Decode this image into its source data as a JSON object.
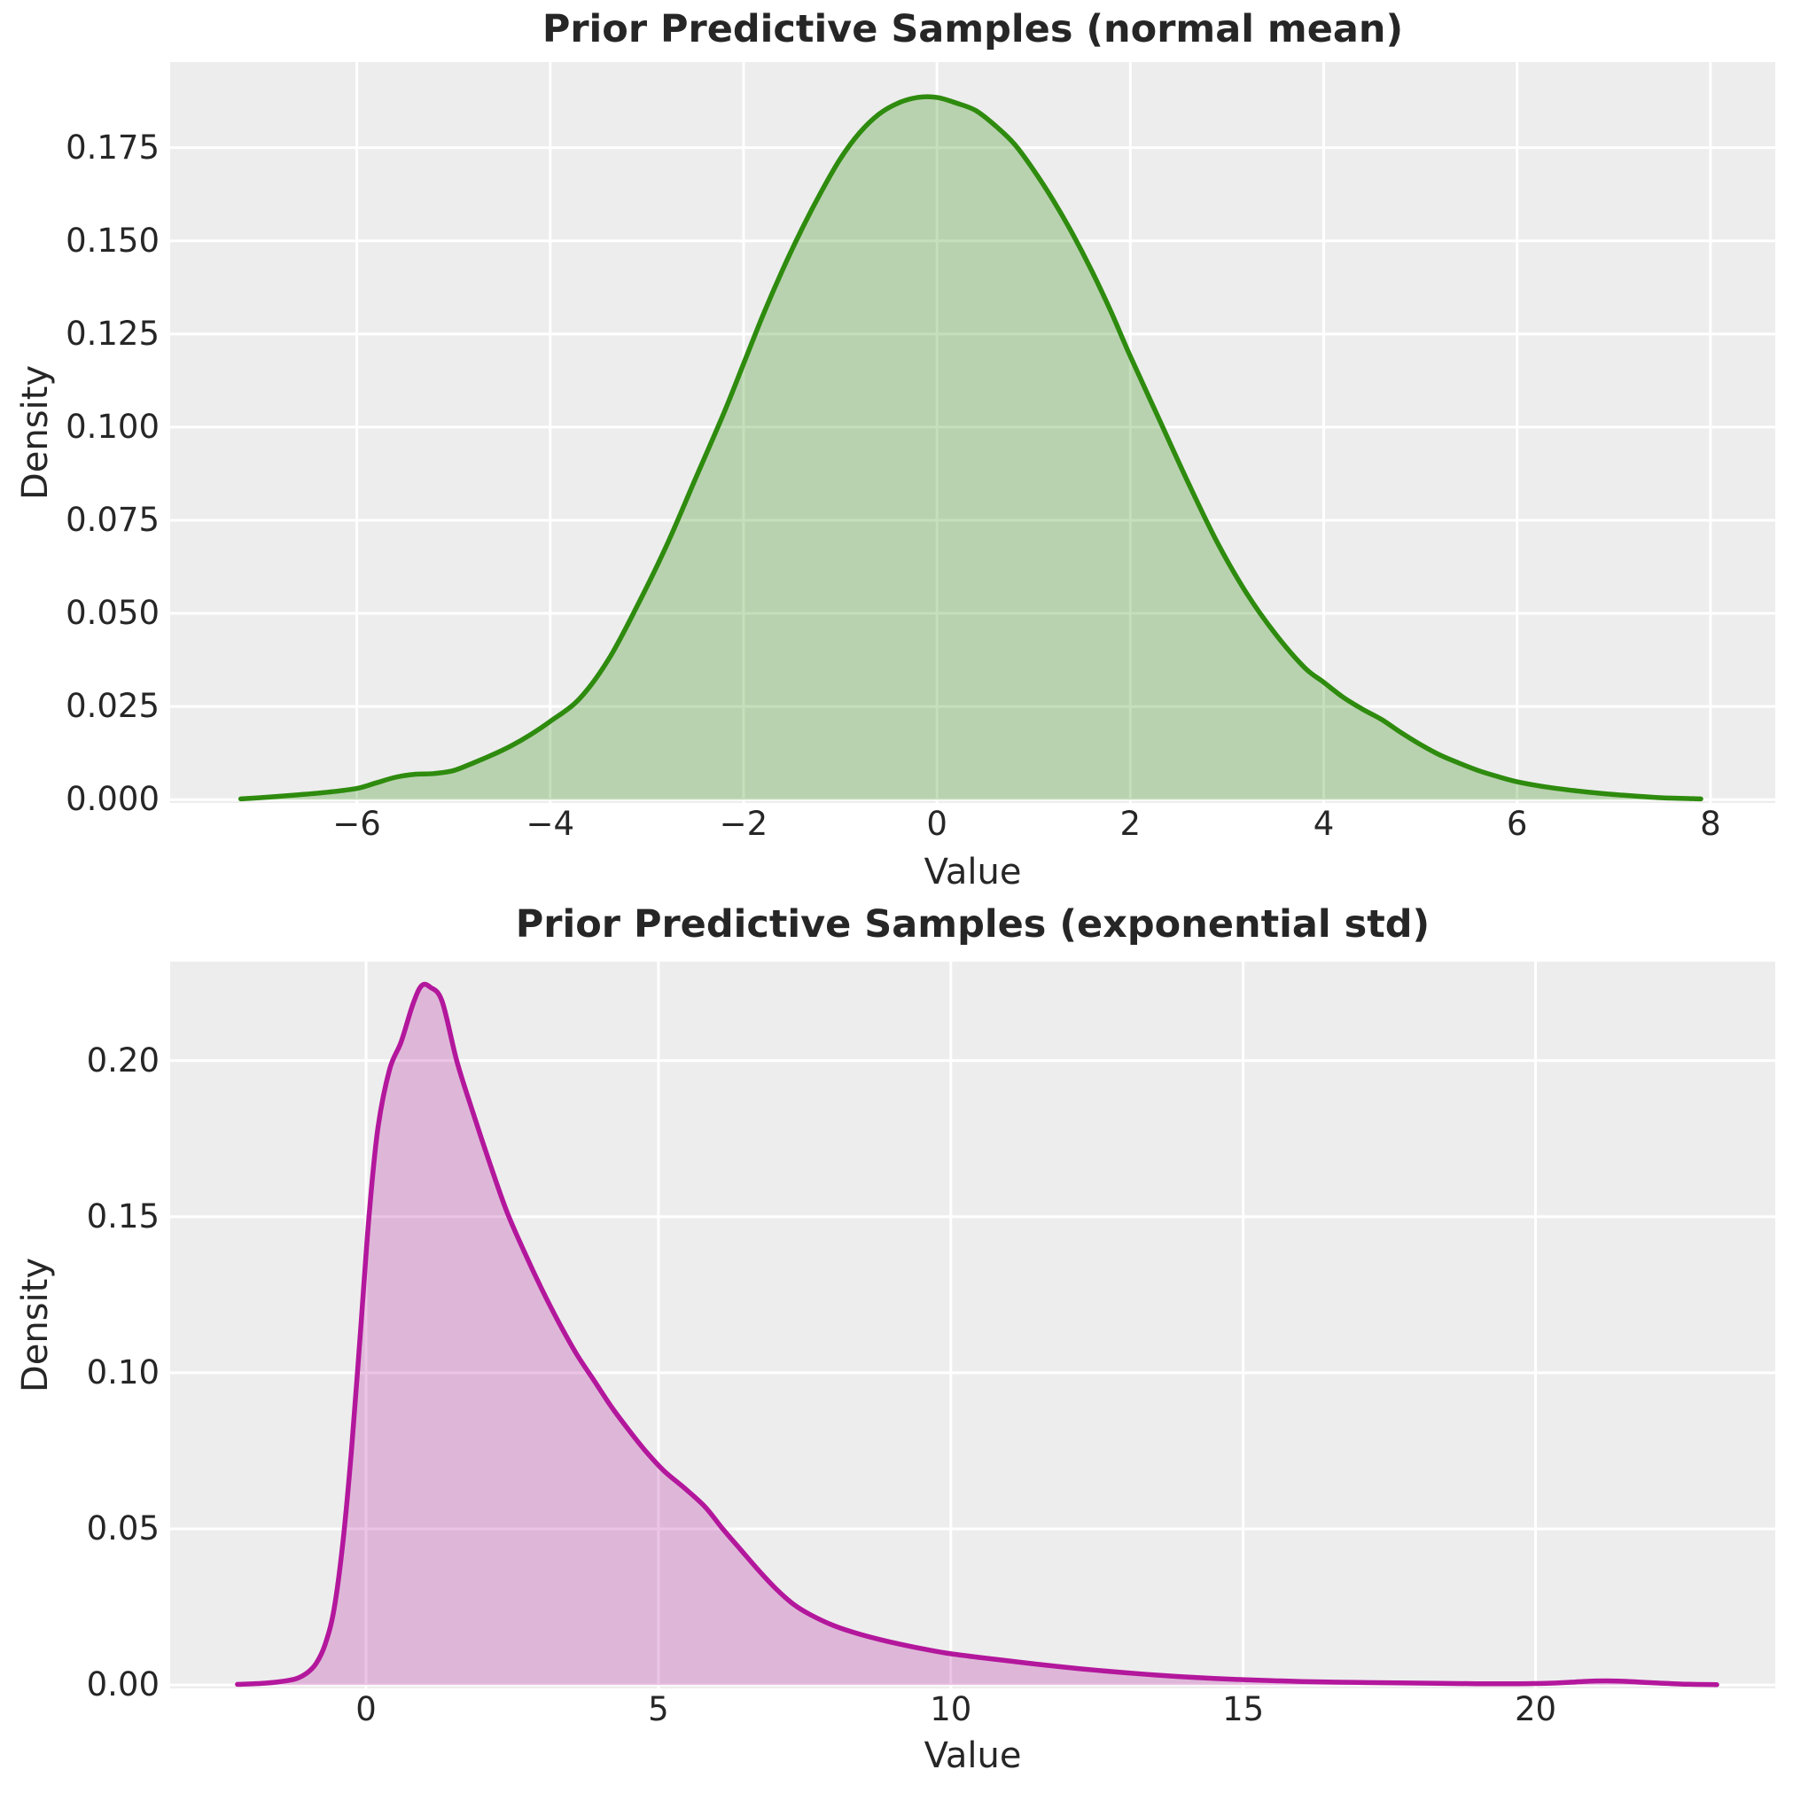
{
  "figure": {
    "background": "#ffffff",
    "axes_background": "#ededed",
    "grid_color": "#ffffff",
    "text_color": "#262626"
  },
  "chart_data": [
    {
      "type": "area",
      "kind": "kde-density",
      "title": "Prior Predictive Samples (normal mean)",
      "xlabel": "Value",
      "ylabel": "Density",
      "line_color": "#2e8b0e",
      "fill_color": "rgba(46,139,14,0.28)",
      "grid": true,
      "legend": null,
      "xlim": [
        -7.93,
        8.67
      ],
      "ylim": [
        -0.0009,
        0.198
      ],
      "xticks": {
        "values": [
          -6,
          -4,
          -2,
          0,
          2,
          4,
          6,
          8
        ],
        "labels": [
          "−6",
          "−4",
          "−2",
          "0",
          "2",
          "4",
          "6",
          "8"
        ]
      },
      "yticks": {
        "values": [
          0,
          0.025,
          0.05,
          0.075,
          0.1,
          0.125,
          0.15,
          0.175
        ],
        "labels": [
          "0.000",
          "0.025",
          "0.050",
          "0.075",
          "0.100",
          "0.125",
          "0.150",
          "0.175"
        ]
      },
      "x": [
        -7.2,
        -6.9,
        -6.6,
        -6.3,
        -6.0,
        -5.8,
        -5.6,
        -5.4,
        -5.2,
        -5.0,
        -4.8,
        -4.6,
        -4.4,
        -4.2,
        -4.0,
        -3.7,
        -3.4,
        -3.1,
        -2.8,
        -2.5,
        -2.2,
        -2.0,
        -1.8,
        -1.6,
        -1.4,
        -1.2,
        -1.0,
        -0.8,
        -0.6,
        -0.4,
        -0.2,
        0.0,
        0.2,
        0.4,
        0.6,
        0.8,
        1.0,
        1.2,
        1.4,
        1.6,
        1.8,
        2.0,
        2.3,
        2.6,
        2.9,
        3.2,
        3.5,
        3.8,
        4.0,
        4.2,
        4.4,
        4.6,
        4.8,
        5.0,
        5.2,
        5.4,
        5.6,
        5.8,
        6.0,
        6.3,
        6.6,
        6.9,
        7.2,
        7.5,
        7.9
      ],
      "y": [
        0.0002,
        0.0007,
        0.0013,
        0.002,
        0.003,
        0.0045,
        0.006,
        0.0068,
        0.007,
        0.0078,
        0.0098,
        0.012,
        0.0145,
        0.0175,
        0.021,
        0.027,
        0.0375,
        0.052,
        0.068,
        0.086,
        0.104,
        0.117,
        0.13,
        0.142,
        0.153,
        0.163,
        0.172,
        0.179,
        0.184,
        0.187,
        0.1885,
        0.1885,
        0.187,
        0.185,
        0.181,
        0.176,
        0.169,
        0.161,
        0.152,
        0.142,
        0.131,
        0.119,
        0.102,
        0.085,
        0.069,
        0.0555,
        0.0445,
        0.0355,
        0.0315,
        0.0275,
        0.0243,
        0.0215,
        0.018,
        0.0148,
        0.012,
        0.0098,
        0.0078,
        0.0062,
        0.0048,
        0.0034,
        0.0024,
        0.0016,
        0.001,
        0.0005,
        0.0002
      ]
    },
    {
      "type": "area",
      "kind": "kde-density",
      "title": "Prior Predictive Samples (exponential std)",
      "xlabel": "Value",
      "ylabel": "Density",
      "line_color": "#b3179c",
      "fill_color": "rgba(179,23,156,0.25)",
      "grid": true,
      "legend": null,
      "xlim": [
        -3.35,
        24.1
      ],
      "ylim": [
        -0.0011,
        0.2317
      ],
      "xticks": {
        "values": [
          0,
          5,
          10,
          15,
          20
        ],
        "labels": [
          "0",
          "5",
          "10",
          "15",
          "20"
        ]
      },
      "yticks": {
        "values": [
          0,
          0.05,
          0.1,
          0.15,
          0.2
        ],
        "labels": [
          "0.00",
          "0.05",
          "0.10",
          "0.15",
          "0.20"
        ]
      },
      "x": [
        -2.2,
        -1.8,
        -1.5,
        -1.2,
        -1.0,
        -0.85,
        -0.7,
        -0.55,
        -0.4,
        -0.25,
        -0.1,
        0.05,
        0.2,
        0.4,
        0.6,
        0.8,
        0.95,
        1.1,
        1.3,
        1.55,
        1.8,
        2.1,
        2.4,
        2.7,
        3.0,
        3.3,
        3.6,
        3.9,
        4.2,
        4.5,
        4.8,
        5.1,
        5.45,
        5.8,
        6.1,
        6.4,
        6.7,
        7.0,
        7.3,
        7.6,
        8.0,
        8.4,
        8.8,
        9.2,
        9.6,
        10.0,
        10.5,
        11.0,
        11.5,
        12.0,
        12.5,
        13.0,
        13.5,
        14.0,
        14.5,
        15.0,
        15.5,
        16.0,
        17.0,
        18.0,
        19.0,
        19.7,
        20.3,
        20.8,
        21.2,
        21.6,
        22.0,
        22.5,
        23.1
      ],
      "y": [
        0.0002,
        0.0005,
        0.001,
        0.002,
        0.004,
        0.007,
        0.013,
        0.024,
        0.045,
        0.075,
        0.112,
        0.15,
        0.178,
        0.197,
        0.206,
        0.218,
        0.224,
        0.2235,
        0.219,
        0.2,
        0.185,
        0.168,
        0.152,
        0.139,
        0.127,
        0.116,
        0.106,
        0.0975,
        0.089,
        0.0815,
        0.0745,
        0.0685,
        0.063,
        0.057,
        0.05,
        0.0435,
        0.037,
        0.031,
        0.026,
        0.0225,
        0.019,
        0.0165,
        0.0145,
        0.0128,
        0.0113,
        0.01,
        0.0088,
        0.0077,
        0.0066,
        0.0056,
        0.0047,
        0.0039,
        0.0032,
        0.0026,
        0.0021,
        0.0017,
        0.0014,
        0.0011,
        0.0008,
        0.0006,
        0.0004,
        0.0004,
        0.0006,
        0.0011,
        0.0013,
        0.0011,
        0.0007,
        0.0003,
        0.0001
      ]
    }
  ]
}
